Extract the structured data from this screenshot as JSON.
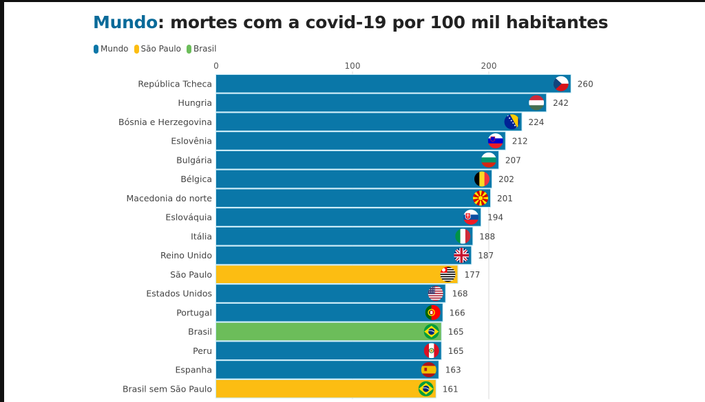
{
  "chart_data": {
    "type": "bar",
    "orientation": "horizontal",
    "title_highlight": "Mundo",
    "title_rest": ": mortes com a covid-19 por 100 mil habitantes",
    "xlabel": "",
    "ylabel": "",
    "xlim": [
      0,
      260
    ],
    "xticks": [
      0,
      100,
      200
    ],
    "grid": true,
    "legend": [
      {
        "name": "Mundo",
        "color": "#0a77a8"
      },
      {
        "name": "São Paulo",
        "color": "#fcbd12"
      },
      {
        "name": "Brasil",
        "color": "#6cbd5a"
      }
    ],
    "categories": [
      "República Tcheca",
      "Hungria",
      "Bósnia e Herzegovina",
      "Eslovênia",
      "Bulgária",
      "Bélgica",
      "Macedonia do norte",
      "Eslováquia",
      "Itália",
      "Reino Unido",
      "São Paulo",
      "Estados Unidos",
      "Portugal",
      "Brasil",
      "Peru",
      "Espanha",
      "Brasil sem São Paulo"
    ],
    "values": [
      260,
      242,
      224,
      212,
      207,
      202,
      201,
      194,
      188,
      187,
      177,
      168,
      166,
      165,
      165,
      163,
      161
    ],
    "groups": [
      "Mundo",
      "Mundo",
      "Mundo",
      "Mundo",
      "Mundo",
      "Mundo",
      "Mundo",
      "Mundo",
      "Mundo",
      "Mundo",
      "São Paulo",
      "Mundo",
      "Mundo",
      "Brasil",
      "Mundo",
      "Mundo",
      "São Paulo"
    ],
    "flags": [
      "czech-flag-icon",
      "hungary-flag-icon",
      "bosnia-flag-icon",
      "slovenia-flag-icon",
      "bulgaria-flag-icon",
      "belgium-flag-icon",
      "north-macedonia-flag-icon",
      "slovakia-flag-icon",
      "italy-flag-icon",
      "uk-flag-icon",
      "sao-paulo-flag-icon",
      "usa-flag-icon",
      "portugal-flag-icon",
      "brazil-flag-icon",
      "peru-flag-icon",
      "spain-flag-icon",
      "brazil-flag-icon"
    ]
  },
  "colors": {
    "Mundo": "#0a77a8",
    "São Paulo": "#fcbd12",
    "Brasil": "#6cbd5a",
    "bar_outline": "#c4e9f6",
    "grid": "#e6e6e6"
  }
}
